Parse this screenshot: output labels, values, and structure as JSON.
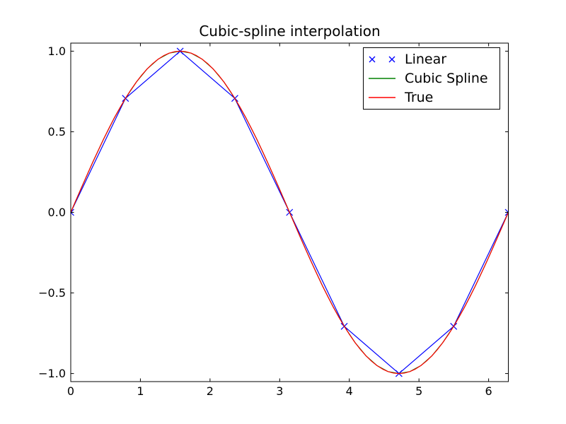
{
  "figure": {
    "background": "#ffffff",
    "frame_color": "#000000"
  },
  "chart_data": {
    "type": "line",
    "title": "Cubic-spline interpolation",
    "xlabel": "",
    "ylabel": "",
    "xlim": [
      0,
      6.2832
    ],
    "ylim": [
      -1.05,
      1.05
    ],
    "grid": false,
    "xticks": {
      "values": [
        0,
        1,
        2,
        3,
        4,
        5,
        6
      ],
      "labels": [
        "0",
        "1",
        "2",
        "3",
        "4",
        "5",
        "6"
      ]
    },
    "yticks": {
      "values": [
        1.0,
        0.5,
        0.0,
        -0.5,
        -1.0
      ],
      "labels": [
        "1.0",
        "0.5",
        "0.0",
        "−0.5",
        "−1.0"
      ]
    },
    "legend": {
      "position": "upper right",
      "border": true,
      "entries": [
        {
          "label": "Linear",
          "handle": "markers"
        },
        {
          "label": "Cubic Spline",
          "handle": "line"
        },
        {
          "label": "True",
          "handle": "line"
        }
      ]
    },
    "series": [
      {
        "name": "Linear",
        "color": "#0000ff",
        "line": true,
        "marker": "x",
        "x": [
          0,
          0.7854,
          1.5708,
          2.3562,
          3.1416,
          3.927,
          4.7124,
          5.4978,
          6.2832
        ],
        "y": [
          0,
          0.7071,
          1,
          0.7071,
          0,
          -0.7071,
          -1,
          -0.7071,
          0
        ]
      },
      {
        "name": "Cubic Spline",
        "color": "#008000",
        "line": true,
        "marker": null,
        "x0": 0,
        "dx": 0.15708,
        "y": [
          0,
          0.1564,
          0.309,
          0.454,
          0.5878,
          0.7071,
          0.809,
          0.891,
          0.9511,
          0.9877,
          1,
          0.9877,
          0.9511,
          0.891,
          0.809,
          0.7071,
          0.5878,
          0.454,
          0.309,
          0.1564,
          0,
          -0.1564,
          -0.309,
          -0.454,
          -0.5878,
          -0.7071,
          -0.809,
          -0.891,
          -0.9511,
          -0.9877,
          -1,
          -0.9877,
          -0.9511,
          -0.891,
          -0.809,
          -0.7071,
          -0.5878,
          -0.454,
          -0.309,
          -0.1564,
          0
        ]
      },
      {
        "name": "True",
        "color": "#ff0000",
        "line": true,
        "marker": null,
        "x0": 0,
        "dx": 0.0785398,
        "y": [
          0,
          0.0785,
          0.1564,
          0.2334,
          0.309,
          0.3827,
          0.454,
          0.5225,
          0.5878,
          0.6494,
          0.7071,
          0.7604,
          0.809,
          0.8526,
          0.891,
          0.9239,
          0.9511,
          0.9724,
          0.9877,
          0.9969,
          1,
          0.9969,
          0.9877,
          0.9724,
          0.9511,
          0.9239,
          0.891,
          0.8526,
          0.809,
          0.7604,
          0.7071,
          0.6494,
          0.5878,
          0.5225,
          0.454,
          0.3827,
          0.309,
          0.2334,
          0.1564,
          0.0785,
          0,
          -0.0785,
          -0.1564,
          -0.2334,
          -0.309,
          -0.3827,
          -0.454,
          -0.5225,
          -0.5878,
          -0.6494,
          -0.7071,
          -0.7604,
          -0.809,
          -0.8526,
          -0.891,
          -0.9239,
          -0.9511,
          -0.9724,
          -0.9877,
          -0.9969,
          -1,
          -0.9969,
          -0.9877,
          -0.9724,
          -0.9511,
          -0.9239,
          -0.891,
          -0.8526,
          -0.809,
          -0.7604,
          -0.7071,
          -0.6494,
          -0.5878,
          -0.5225,
          -0.454,
          -0.3827,
          -0.309,
          -0.2334,
          -0.1564,
          -0.0785,
          0
        ]
      }
    ]
  }
}
